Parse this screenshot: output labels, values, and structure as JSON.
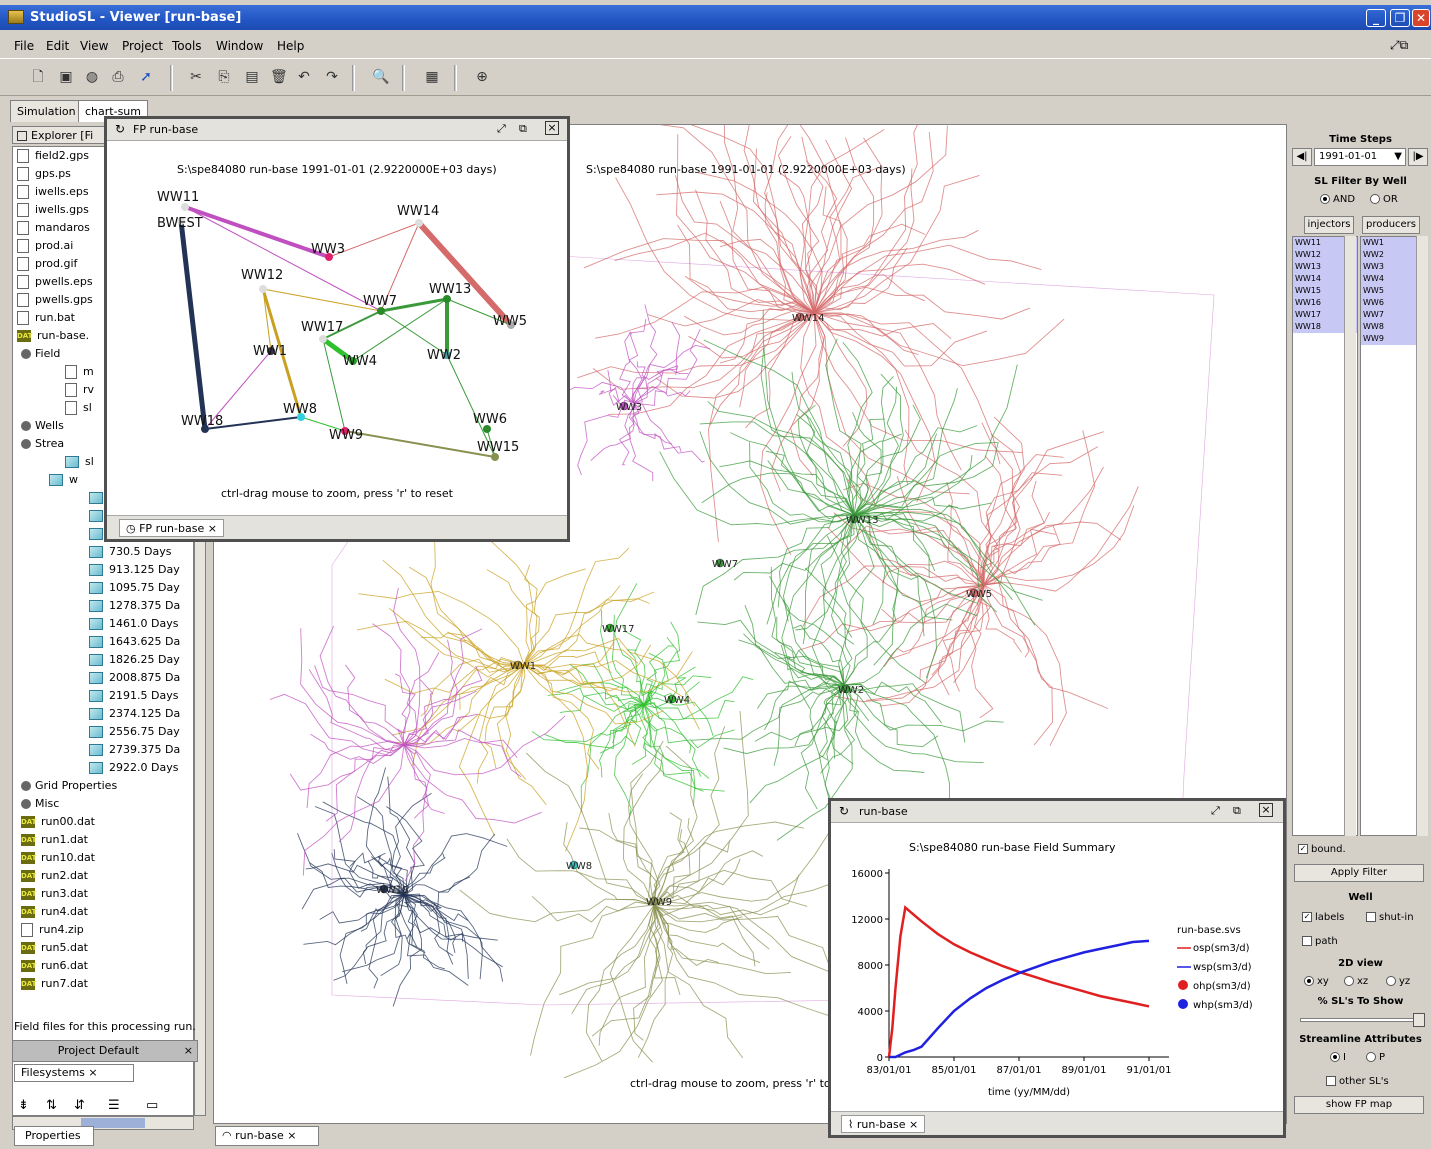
{
  "window": {
    "title": "StudioSL - Viewer [run-base]"
  },
  "menu": [
    "File",
    "Edit",
    "View",
    "Project",
    "Tools",
    "Window",
    "Help"
  ],
  "top_tabs": [
    "Simulation",
    "chart-sum"
  ],
  "explorer": {
    "header": "Explorer [Fi",
    "items": [
      {
        "label": "field2.gps",
        "icon": "file"
      },
      {
        "label": "gps.ps",
        "icon": "file"
      },
      {
        "label": "iwells.eps",
        "icon": "file"
      },
      {
        "label": "iwells.gps",
        "icon": "file"
      },
      {
        "label": "mandaros",
        "icon": "file"
      },
      {
        "label": "prod.ai",
        "icon": "file"
      },
      {
        "label": "prod.gif",
        "icon": "file"
      },
      {
        "label": "pwells.eps",
        "icon": "file"
      },
      {
        "label": "pwells.gps",
        "icon": "file"
      },
      {
        "label": "run.bat",
        "icon": "file"
      },
      {
        "label": "run-base.",
        "icon": "dat"
      },
      {
        "label": "Field",
        "icon": "node"
      },
      {
        "label": "m",
        "icon": "file"
      },
      {
        "label": "rv",
        "icon": "file"
      },
      {
        "label": "sl",
        "icon": "file"
      },
      {
        "label": "Wells",
        "icon": "node"
      },
      {
        "label": "Strea",
        "icon": "node"
      },
      {
        "label": "sl",
        "icon": "sl"
      },
      {
        "label": "w",
        "icon": "sl"
      },
      {
        "label": "",
        "icon": "sl"
      },
      {
        "label": "",
        "icon": "sl"
      },
      {
        "label": "",
        "icon": "sl"
      },
      {
        "label": "730.5 Days",
        "icon": "sl"
      },
      {
        "label": "913.125 Day",
        "icon": "sl"
      },
      {
        "label": "1095.75 Day",
        "icon": "sl"
      },
      {
        "label": "1278.375 Da",
        "icon": "sl"
      },
      {
        "label": "1461.0 Days",
        "icon": "sl"
      },
      {
        "label": "1643.625 Da",
        "icon": "sl"
      },
      {
        "label": "1826.25 Day",
        "icon": "sl"
      },
      {
        "label": "2008.875 Da",
        "icon": "sl"
      },
      {
        "label": "2191.5 Days",
        "icon": "sl"
      },
      {
        "label": "2374.125 Da",
        "icon": "sl"
      },
      {
        "label": "2556.75 Day",
        "icon": "sl"
      },
      {
        "label": "2739.375 Da",
        "icon": "sl"
      },
      {
        "label": "2922.0 Days",
        "icon": "sl"
      },
      {
        "label": "Grid Properties",
        "icon": "node"
      },
      {
        "label": "Misc",
        "icon": "node"
      },
      {
        "label": "run00.dat",
        "icon": "dat"
      },
      {
        "label": "run1.dat",
        "icon": "dat"
      },
      {
        "label": "run10.dat",
        "icon": "dat"
      },
      {
        "label": "run2.dat",
        "icon": "dat"
      },
      {
        "label": "run3.dat",
        "icon": "dat"
      },
      {
        "label": "run4.dat",
        "icon": "dat"
      },
      {
        "label": "run4.zip",
        "icon": "file"
      },
      {
        "label": "run5.dat",
        "icon": "dat"
      },
      {
        "label": "run6.dat",
        "icon": "dat"
      },
      {
        "label": "run7.dat",
        "icon": "dat"
      }
    ],
    "status": "Field files for this processing run.",
    "project_default": "Project Default",
    "filesystems": "Filesystems",
    "properties": "Properties"
  },
  "main": {
    "heading": "S:\\spe84080 run-base 1991-01-01 (2.9220000E+03 days)",
    "hint": "ctrl-drag mouse to zoom, press 'r' to",
    "tab": "run-base",
    "wells": [
      {
        "name": "WW14",
        "color": "#d46a6a"
      },
      {
        "name": "WW3",
        "color": "#c050c0"
      },
      {
        "name": "WW13",
        "color": "#3a9a3a"
      },
      {
        "name": "WW7",
        "color": "#3a9a3a"
      },
      {
        "name": "WW5",
        "color": "#d46a6a"
      },
      {
        "name": "WW17",
        "color": "#2fbf2f"
      },
      {
        "name": "WW1",
        "color": "#c9a020"
      },
      {
        "name": "WW4",
        "color": "#2fbf2f"
      },
      {
        "name": "WW2",
        "color": "#3a9a3a"
      },
      {
        "name": "WW18",
        "color": "#223355"
      },
      {
        "name": "WW8",
        "color": "#30c0c0"
      },
      {
        "name": "WW9",
        "color": "#8a9050"
      }
    ]
  },
  "fp_window": {
    "title": "FP run-base",
    "heading": "S:\\spe84080 run-base 1991-01-01 (2.9220000E+03 days)",
    "hint": "ctrl-drag mouse to zoom, press 'r' to reset",
    "tab": "FP run-base",
    "well_labels": [
      "WW11",
      "BWEST",
      "WW14",
      "WW3",
      "WW12",
      "WW7",
      "WW13",
      "WW5",
      "WW17",
      "WW1",
      "WW4",
      "WW2",
      "WW18",
      "WW8",
      "WW9",
      "WW6",
      "WW15"
    ]
  },
  "summary_window": {
    "title": "run-base",
    "tab": "run-base"
  },
  "chart_data": {
    "type": "line",
    "title": "S:\\spe84080 run-base Field Summary",
    "xlabel": "time (yy/MM/dd)",
    "ylabel": "",
    "x_ticks": [
      "83/01/01",
      "85/01/01",
      "87/01/01",
      "89/01/01",
      "91/01/01"
    ],
    "y_ticks": [
      0,
      4000,
      8000,
      12000,
      16000
    ],
    "ylim": [
      0,
      16000
    ],
    "legend_title": "run-base.svs",
    "legend": [
      "osp(sm3/d)",
      "wsp(sm3/d)",
      "ohp(sm3/d)",
      "whp(sm3/d)"
    ],
    "series": [
      {
        "name": "osp(sm3/d)",
        "color": "#e02020",
        "x": [
          0.0,
          0.1,
          0.2,
          0.35,
          0.5,
          0.75,
          1.0,
          1.5,
          2.0,
          2.5,
          3.0,
          3.5,
          4.0,
          4.5,
          5.0,
          5.5,
          6.0,
          6.5,
          7.0,
          7.5,
          8.0
        ],
        "y": [
          0,
          2500,
          6000,
          10500,
          13000,
          12400,
          11800,
          10700,
          9800,
          9100,
          8500,
          7900,
          7400,
          6950,
          6500,
          6100,
          5700,
          5300,
          5000,
          4700,
          4400
        ]
      },
      {
        "name": "wsp(sm3/d)",
        "color": "#2020e0",
        "x": [
          0.0,
          0.2,
          0.5,
          0.75,
          1.0,
          1.5,
          2.0,
          2.5,
          3.0,
          3.5,
          4.0,
          4.5,
          5.0,
          5.5,
          6.0,
          6.5,
          7.0,
          7.5,
          8.0
        ],
        "y": [
          0,
          0,
          400,
          600,
          900,
          2500,
          4000,
          5100,
          6000,
          6700,
          7300,
          7800,
          8300,
          8700,
          9100,
          9400,
          9700,
          10000,
          10100
        ]
      }
    ]
  },
  "right_panel": {
    "time_steps_label": "Time Steps",
    "time_value": "1991-01-01",
    "filter_label": "SL Filter By Well",
    "and_label": "AND",
    "or_label": "OR",
    "injectors_label": "injectors",
    "producers_label": "producers",
    "injector_wells": [
      "WW11",
      "WW12",
      "WW13",
      "WW14",
      "WW15",
      "WW16",
      "WW17",
      "WW18"
    ],
    "producer_wells": [
      "WW1",
      "WW2",
      "WW3",
      "WW4",
      "WW5",
      "WW6",
      "WW7",
      "WW8",
      "WW9"
    ],
    "bound_label": "bound.",
    "apply_filter_label": "Apply Filter",
    "well_label": "Well",
    "labels_label": "labels",
    "shutin_label": "shut-in",
    "path_label": "path",
    "view_label": "2D view",
    "xy_label": "xy",
    "xz_label": "xz",
    "yz_label": "yz",
    "pct_label": "% SL's To Show",
    "attrs_label": "Streamline Attributes",
    "i_label": "I",
    "p_label": "P",
    "other_label": "other SL's",
    "show_fp_label": "show FP map"
  },
  "colors": {
    "titlebar": "#2256c4",
    "panel": "#d4d0c8",
    "selection": "#c8c8f4"
  }
}
